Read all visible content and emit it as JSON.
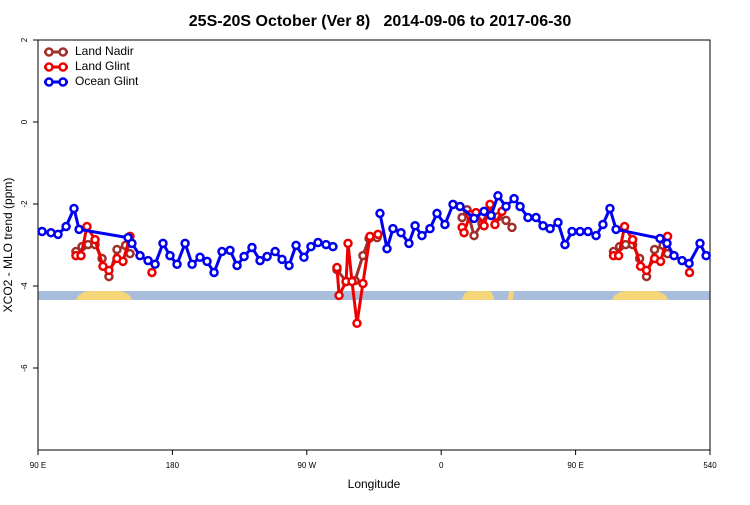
{
  "chart_data": {
    "type": "line",
    "title": "25S-20S October (Ver 8)   2014-09-06 to 2017-06-30",
    "x_label": "Longitude",
    "y_label": "XCO2 - MLO trend (ppm)",
    "xlim": [
      90,
      540
    ],
    "xticks": [
      {
        "value": 90,
        "label": "90 E"
      },
      180,
      {
        "value": 270,
        "label": "90 W"
      },
      {
        "value": 360,
        "label": "0"
      },
      {
        "value": 450,
        "label": "90 E"
      },
      540
    ],
    "ylim": [
      -8,
      2
    ],
    "yticks": [
      2,
      0,
      -2,
      -4,
      -6
    ],
    "legend": "upper left",
    "series": [
      {
        "name": "Land Nadir",
        "color": "#a0302c",
        "x": [
          115.4,
          119.5,
          123.5,
          128.2,
          132.9,
          137.5,
          142.9,
          148.6,
          151.6,
          null,
          290.2,
          296.3,
          302.3,
          307.6,
          311.7,
          317,
          null,
          374,
          377.3,
          382,
          387.3,
          392,
          398,
          403.4,
          407.4,
          null,
          475.4,
          479.5,
          483.5,
          488.2,
          492.9,
          497.5,
          502.9,
          508.6,
          511.6
        ],
        "values": [
          -3.16,
          -3.04,
          -2.99,
          -2.99,
          -3.33,
          -3.77,
          -3.11,
          -3.01,
          -3.21,
          null,
          -3.6,
          -3.89,
          -3.87,
          -3.26,
          -2.84,
          -2.82,
          null,
          -2.33,
          -2.14,
          -2.77,
          -2.48,
          -2.14,
          -2.31,
          -2.4,
          -2.57,
          null,
          -3.16,
          -3.04,
          -2.99,
          -2.99,
          -3.33,
          -3.77,
          -3.11,
          -3.01,
          -3.21
        ]
      },
      {
        "name": "Land Glint",
        "color": "#ee0000",
        "x": [
          115.4,
          118.8,
          122.8,
          128.2,
          133.5,
          137.5,
          142.9,
          146.9,
          151.6,
          null,
          166.3,
          null,
          290.2,
          291.6,
          296.3,
          297.6,
          300.3,
          303.6,
          307.6,
          312.3,
          317.7,
          null,
          374,
          375.3,
          379.3,
          383.3,
          388.7,
          392.7,
          396,
          400.7,
          null,
          475.4,
          478.8,
          482.8,
          488.2,
          493.5,
          497.5,
          502.9,
          506.9,
          511.6,
          null,
          526.3
        ],
        "values": [
          -3.26,
          -3.26,
          -2.55,
          -2.87,
          -3.52,
          -3.62,
          -3.33,
          -3.4,
          -2.79,
          null,
          -3.67,
          null,
          -3.55,
          -4.23,
          -3.89,
          -2.96,
          -3.89,
          -4.91,
          -3.94,
          -2.79,
          -2.74,
          null,
          -2.57,
          -2.7,
          -2.26,
          -2.21,
          -2.53,
          -2.01,
          -2.5,
          -2.18,
          null,
          -3.26,
          -3.26,
          -2.55,
          -2.87,
          -3.52,
          -3.62,
          -3.33,
          -3.4,
          -2.79,
          null,
          -3.67
        ]
      },
      {
        "name": "Ocean Glint",
        "color": "#0000ee",
        "x": [
          92.7,
          98.7,
          103.4,
          108.8,
          114.1,
          117.5,
          150.3,
          152.9,
          158.3,
          163.7,
          168.4,
          173.7,
          178.4,
          183.1,
          188.5,
          193.2,
          198.5,
          203.2,
          207.9,
          213.2,
          218.6,
          223.3,
          228,
          233.3,
          238.7,
          243.4,
          248.8,
          253.4,
          258.1,
          262.8,
          268.1,
          272.8,
          277.5,
          282.9,
          287.5,
          null,
          319,
          323.7,
          327.7,
          333.1,
          338.4,
          342.5,
          347.1,
          352.5,
          357.2,
          362.5,
          367.9,
          372.6,
          382,
          388.7,
          393.4,
          398,
          403.4,
          408.8,
          412.8,
          418.1,
          423.5,
          428.2,
          432.9,
          438.2,
          442.9,
          447.6,
          453,
          458.3,
          463.7,
          468.3,
          473,
          477.1,
          506.5,
          511.2,
          515.9,
          521.3,
          526,
          533.3,
          537.4
        ],
        "values": [
          -2.67,
          -2.7,
          -2.74,
          -2.55,
          -2.11,
          -2.62,
          -2.82,
          -2.96,
          -3.26,
          -3.38,
          -3.47,
          -2.96,
          -3.26,
          -3.47,
          -2.96,
          -3.47,
          -3.3,
          -3.4,
          -3.67,
          -3.16,
          -3.13,
          -3.5,
          -3.28,
          -3.06,
          -3.38,
          -3.28,
          -3.16,
          -3.35,
          -3.5,
          -3.01,
          -3.3,
          -3.04,
          -2.94,
          -2.99,
          -3.04,
          null,
          -2.23,
          -3.09,
          -2.6,
          -2.7,
          -2.96,
          -2.53,
          -2.77,
          -2.6,
          -2.23,
          -2.5,
          -2.01,
          -2.06,
          -2.35,
          -2.18,
          -2.28,
          -1.8,
          -2.06,
          -1.87,
          -2.06,
          -2.33,
          -2.33,
          -2.53,
          -2.6,
          -2.45,
          -2.99,
          -2.67,
          -2.67,
          -2.67,
          -2.77,
          -2.5,
          -2.11,
          -2.62,
          -2.84,
          -2.96,
          -3.26,
          -3.38,
          -3.45,
          -2.96,
          -3.26
        ]
      }
    ]
  }
}
